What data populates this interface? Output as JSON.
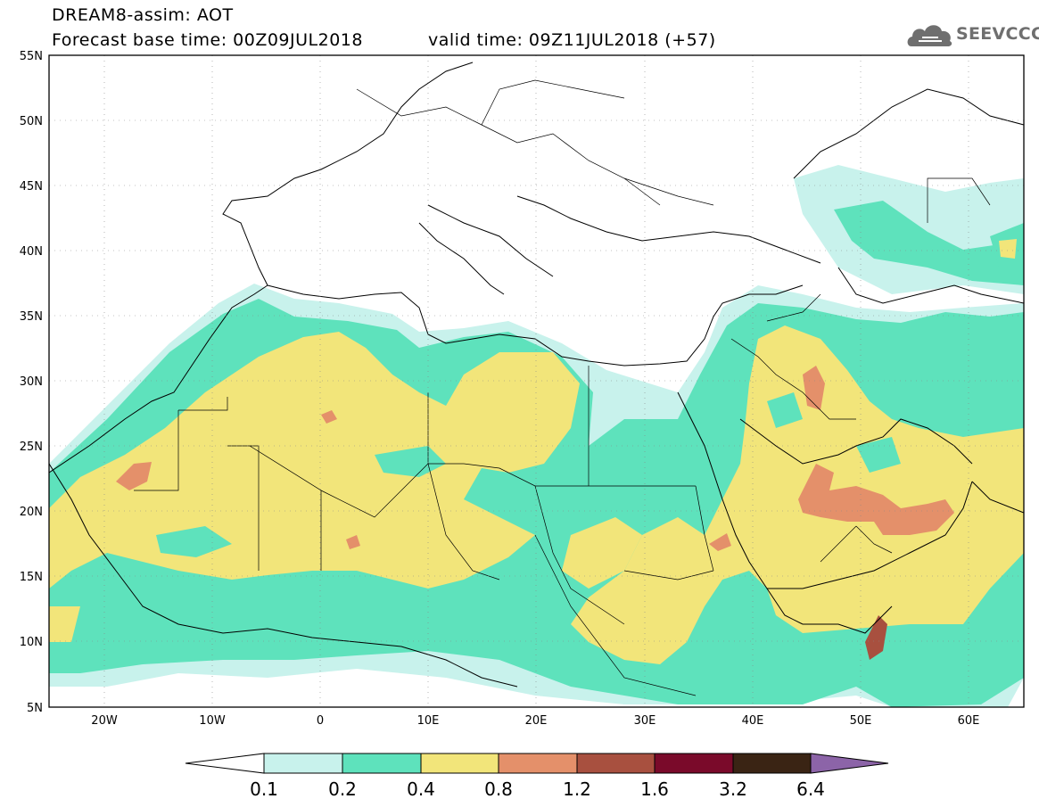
{
  "header": {
    "title": "DREAM8-assim: AOT",
    "base_time": "Forecast base time: 00Z09JUL2018",
    "valid_time": "valid time: 09Z11JUL2018 (+57)"
  },
  "logo": {
    "text": "SEEVCCC",
    "icon": "cloud-icon"
  },
  "axes": {
    "lat_labels": [
      "55N",
      "50N",
      "45N",
      "40N",
      "35N",
      "30N",
      "25N",
      "20N",
      "15N",
      "10N",
      "5N"
    ],
    "lon_labels": [
      "20W",
      "10W",
      "0",
      "10E",
      "20E",
      "30E",
      "40E",
      "50E",
      "60E"
    ]
  },
  "colorbar": {
    "labels": [
      "0.1",
      "0.2",
      "0.4",
      "0.8",
      "1.2",
      "1.6",
      "3.2",
      "6.4"
    ],
    "colors": [
      "#ffffff",
      "#c8f2ec",
      "#5ee2bc",
      "#f2e57a",
      "#e4906a",
      "#a8503f",
      "#7a0a2a",
      "#3a2414",
      "#8c64a8"
    ]
  },
  "field_colors": {
    "c1": "#c8f2ec",
    "c2": "#5ee2bc",
    "c3": "#f2e57a",
    "c4": "#e4906a",
    "c5": "#a8503f"
  }
}
